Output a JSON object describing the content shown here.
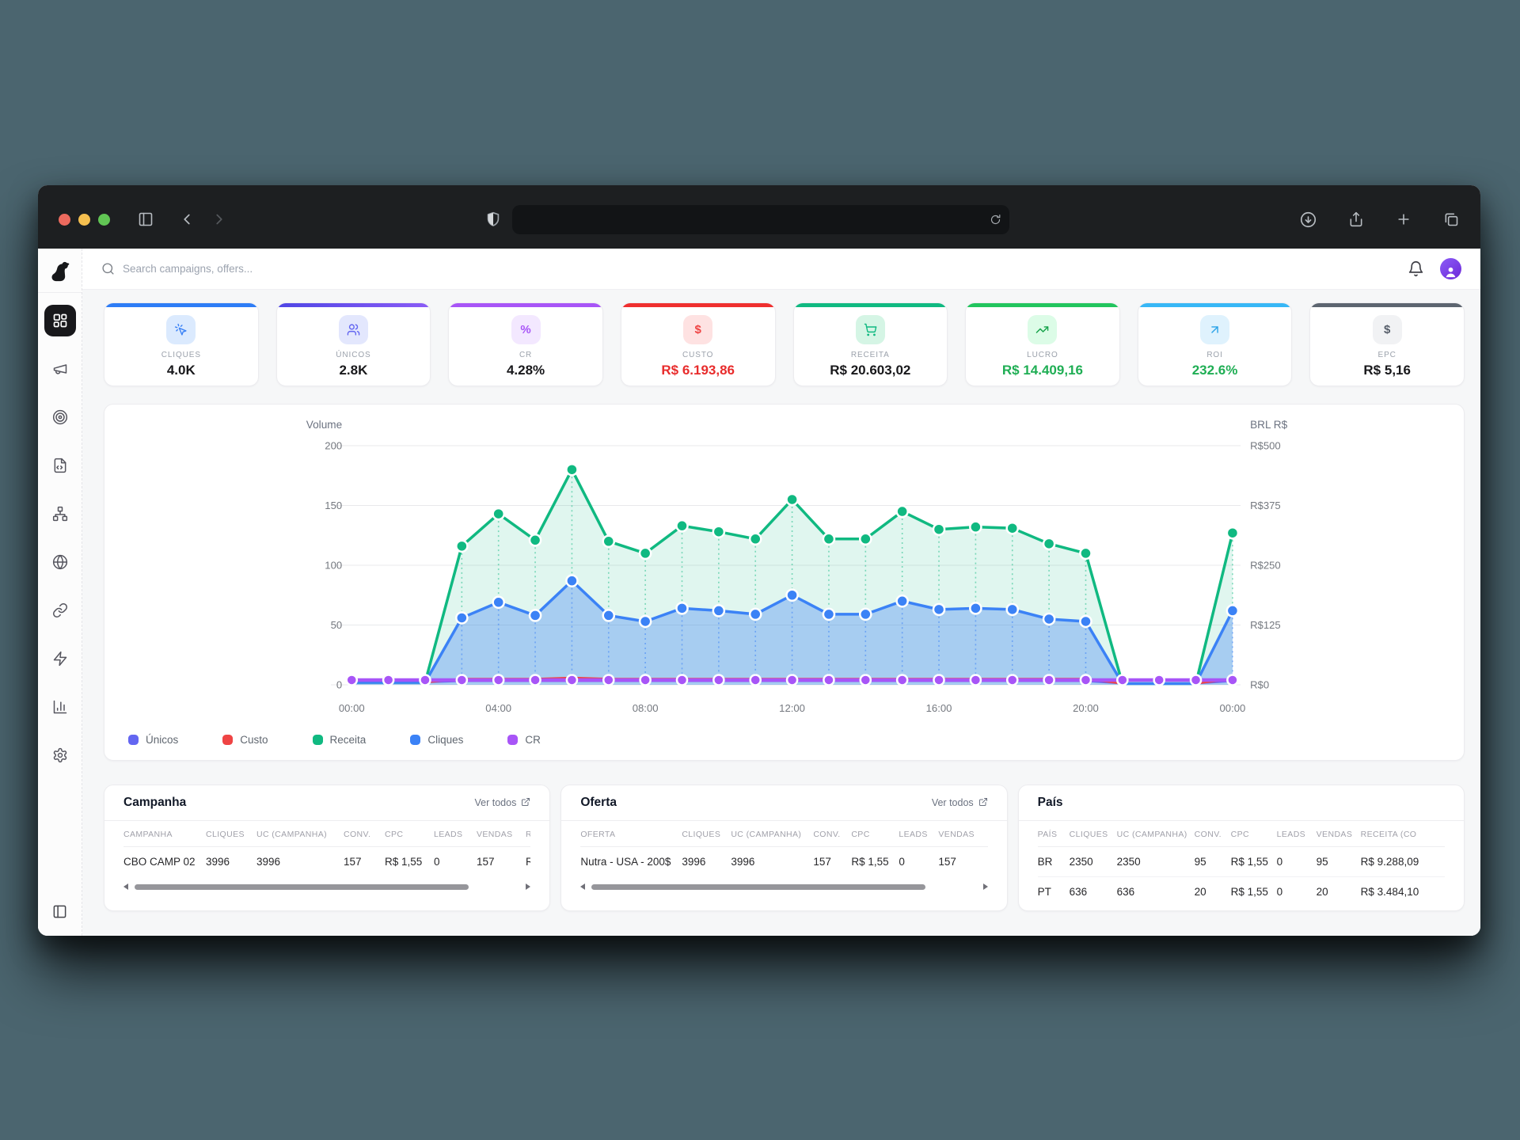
{
  "header": {
    "search_placeholder": "Search campaigns, offers..."
  },
  "sidebar": {
    "items": [
      {
        "name": "dashboard",
        "icon": "grid",
        "active": true
      },
      {
        "name": "campaigns",
        "icon": "megaphone",
        "active": false
      },
      {
        "name": "targets",
        "icon": "target",
        "active": false
      },
      {
        "name": "landers",
        "icon": "file-code",
        "active": false
      },
      {
        "name": "flows",
        "icon": "network",
        "active": false
      },
      {
        "name": "domains",
        "icon": "globe",
        "active": false
      },
      {
        "name": "links",
        "icon": "link",
        "active": false
      },
      {
        "name": "automations",
        "icon": "zap",
        "active": false
      },
      {
        "name": "reports",
        "icon": "bar-chart",
        "active": false
      },
      {
        "name": "settings",
        "icon": "gear",
        "active": false
      }
    ]
  },
  "kpis": [
    {
      "label": "CLIQUES",
      "value": "4.0K",
      "accent": "#2e7df6",
      "icon": "cursor-click",
      "icon_bg": "#dbeafe",
      "icon_color": "#3b82f6",
      "value_color": "#18181b"
    },
    {
      "label": "ÚNICOS",
      "value": "2.8K",
      "accent": "linear-gradient(90deg,#4f46e5,#8b5cf6)",
      "icon": "users",
      "icon_bg": "#e3e7fd",
      "icon_color": "#6366f1",
      "value_color": "#18181b"
    },
    {
      "label": "CR",
      "value": "4.28%",
      "accent": "#a855f7",
      "icon": "percent",
      "icon_bg": "#f3e8ff",
      "icon_color": "#a855f7",
      "value_color": "#18181b"
    },
    {
      "label": "CUSTO",
      "value": "R$ 6.193,86",
      "accent": "#ef2f2f",
      "icon": "dollar",
      "icon_bg": "#fee2e2",
      "icon_color": "#ef4444",
      "value_color": "#e82c2c"
    },
    {
      "label": "RECEITA",
      "value": "R$ 20.603,02",
      "accent": "#10b981",
      "icon": "cart",
      "icon_bg": "#d5f5e5",
      "icon_color": "#10b981",
      "value_color": "#18181b"
    },
    {
      "label": "LUCRO",
      "value": "R$ 14.409,16",
      "accent": "#22c55e",
      "icon": "trend-up",
      "icon_bg": "#dcfce7",
      "icon_color": "#16a34a",
      "value_color": "#1fae54"
    },
    {
      "label": "ROI",
      "value": "232.6%",
      "accent": "#38b7f6",
      "icon": "arrow-up-right",
      "icon_bg": "#dff2fd",
      "icon_color": "#2ba3e8",
      "value_color": "#1fae54"
    },
    {
      "label": "EPC",
      "value": "R$ 5,16",
      "accent": "#5d6570",
      "icon": "dollar",
      "icon_bg": "#f1f2f4",
      "icon_color": "#565e6a",
      "value_color": "#18181b"
    }
  ],
  "chart_data": {
    "type": "area",
    "x_tick_labels": [
      "00:00",
      "04:00",
      "08:00",
      "12:00",
      "16:00",
      "20:00",
      "00:00"
    ],
    "x_tick_indices": [
      0,
      4,
      8,
      12,
      16,
      20,
      24
    ],
    "left_axis": {
      "title": "Volume",
      "ticks": [
        0,
        50,
        100,
        150,
        200
      ],
      "max": 200
    },
    "right_axis": {
      "title": "BRL R$",
      "ticks": [
        "R$0",
        "R$125",
        "R$250",
        "R$375",
        "R$500"
      ]
    },
    "series": [
      {
        "name": "Únicos",
        "color": "#6366f1",
        "width": 2,
        "dots": false,
        "values": [
          2,
          2,
          2,
          3,
          3,
          3,
          3,
          3,
          3,
          3,
          3,
          3,
          3,
          3,
          3,
          3,
          3,
          3,
          3,
          3,
          3,
          1,
          1,
          1,
          3
        ]
      },
      {
        "name": "Custo",
        "color": "#ef4444",
        "width": 2.5,
        "dots": false,
        "values": [
          2,
          2,
          2,
          5,
          5,
          5,
          6,
          5,
          5,
          5,
          5,
          5,
          5,
          5,
          5,
          5,
          5,
          5,
          5,
          5,
          5,
          1,
          1,
          1,
          5
        ]
      },
      {
        "name": "Receita",
        "color": "#10b981",
        "fill": "rgba(16,185,129,0.13)",
        "width": 3.5,
        "dots": true,
        "values": [
          2,
          2,
          2,
          116,
          143,
          121,
          180,
          120,
          110,
          133,
          128,
          122,
          155,
          122,
          122,
          145,
          130,
          132,
          131,
          118,
          110,
          1,
          1,
          1,
          127
        ]
      },
      {
        "name": "Cliques",
        "color": "#3b82f6",
        "fill": "rgba(59,130,246,0.35)",
        "width": 3.5,
        "dots": true,
        "values": [
          2,
          2,
          2,
          56,
          69,
          58,
          87,
          58,
          53,
          64,
          62,
          59,
          75,
          59,
          59,
          70,
          63,
          64,
          63,
          55,
          53,
          1,
          1,
          1,
          62
        ]
      },
      {
        "name": "CR",
        "color": "#a855f7",
        "width": 4.5,
        "dots": true,
        "values": [
          4,
          4,
          4,
          4,
          4,
          4,
          4,
          4,
          4,
          4,
          4,
          4,
          4,
          4,
          4,
          4,
          4,
          4,
          4,
          4,
          4,
          4,
          4,
          4,
          4
        ]
      }
    ],
    "legend_position": "bottom"
  },
  "tables": [
    {
      "title": "Campanha",
      "link": "Ver todos",
      "scrollbar": true,
      "headers": [
        "CAMPANHA",
        "CLIQUES",
        "UC (CAMPANHA)",
        "CONV.",
        "CPC",
        "LEADS",
        "VENDAS",
        "R"
      ],
      "rows": [
        [
          "CBO CAMP 02",
          "3996",
          "3996",
          "157",
          "R$ 1,55",
          "0",
          "157",
          "R"
        ]
      ]
    },
    {
      "title": "Oferta",
      "link": "Ver todos",
      "scrollbar": true,
      "headers": [
        "OFERTA",
        "CLIQUES",
        "UC (CAMPANHA)",
        "CONV.",
        "CPC",
        "LEADS",
        "VENDAS"
      ],
      "rows": [
        [
          "Nutra - USA - 200$",
          "3996",
          "3996",
          "157",
          "R$ 1,55",
          "0",
          "157"
        ]
      ]
    },
    {
      "title": "País",
      "link": null,
      "scrollbar": false,
      "headers": [
        "PAÍS",
        "CLIQUES",
        "UC (CAMPANHA)",
        "CONV.",
        "CPC",
        "LEADS",
        "VENDAS",
        "RECEITA (CO"
      ],
      "rows": [
        [
          "BR",
          "2350",
          "2350",
          "95",
          "R$ 1,55",
          "0",
          "95",
          "R$ 9.288,09"
        ],
        [
          "PT",
          "636",
          "636",
          "20",
          "R$ 1,55",
          "0",
          "20",
          "R$ 3.484,10"
        ]
      ]
    }
  ]
}
